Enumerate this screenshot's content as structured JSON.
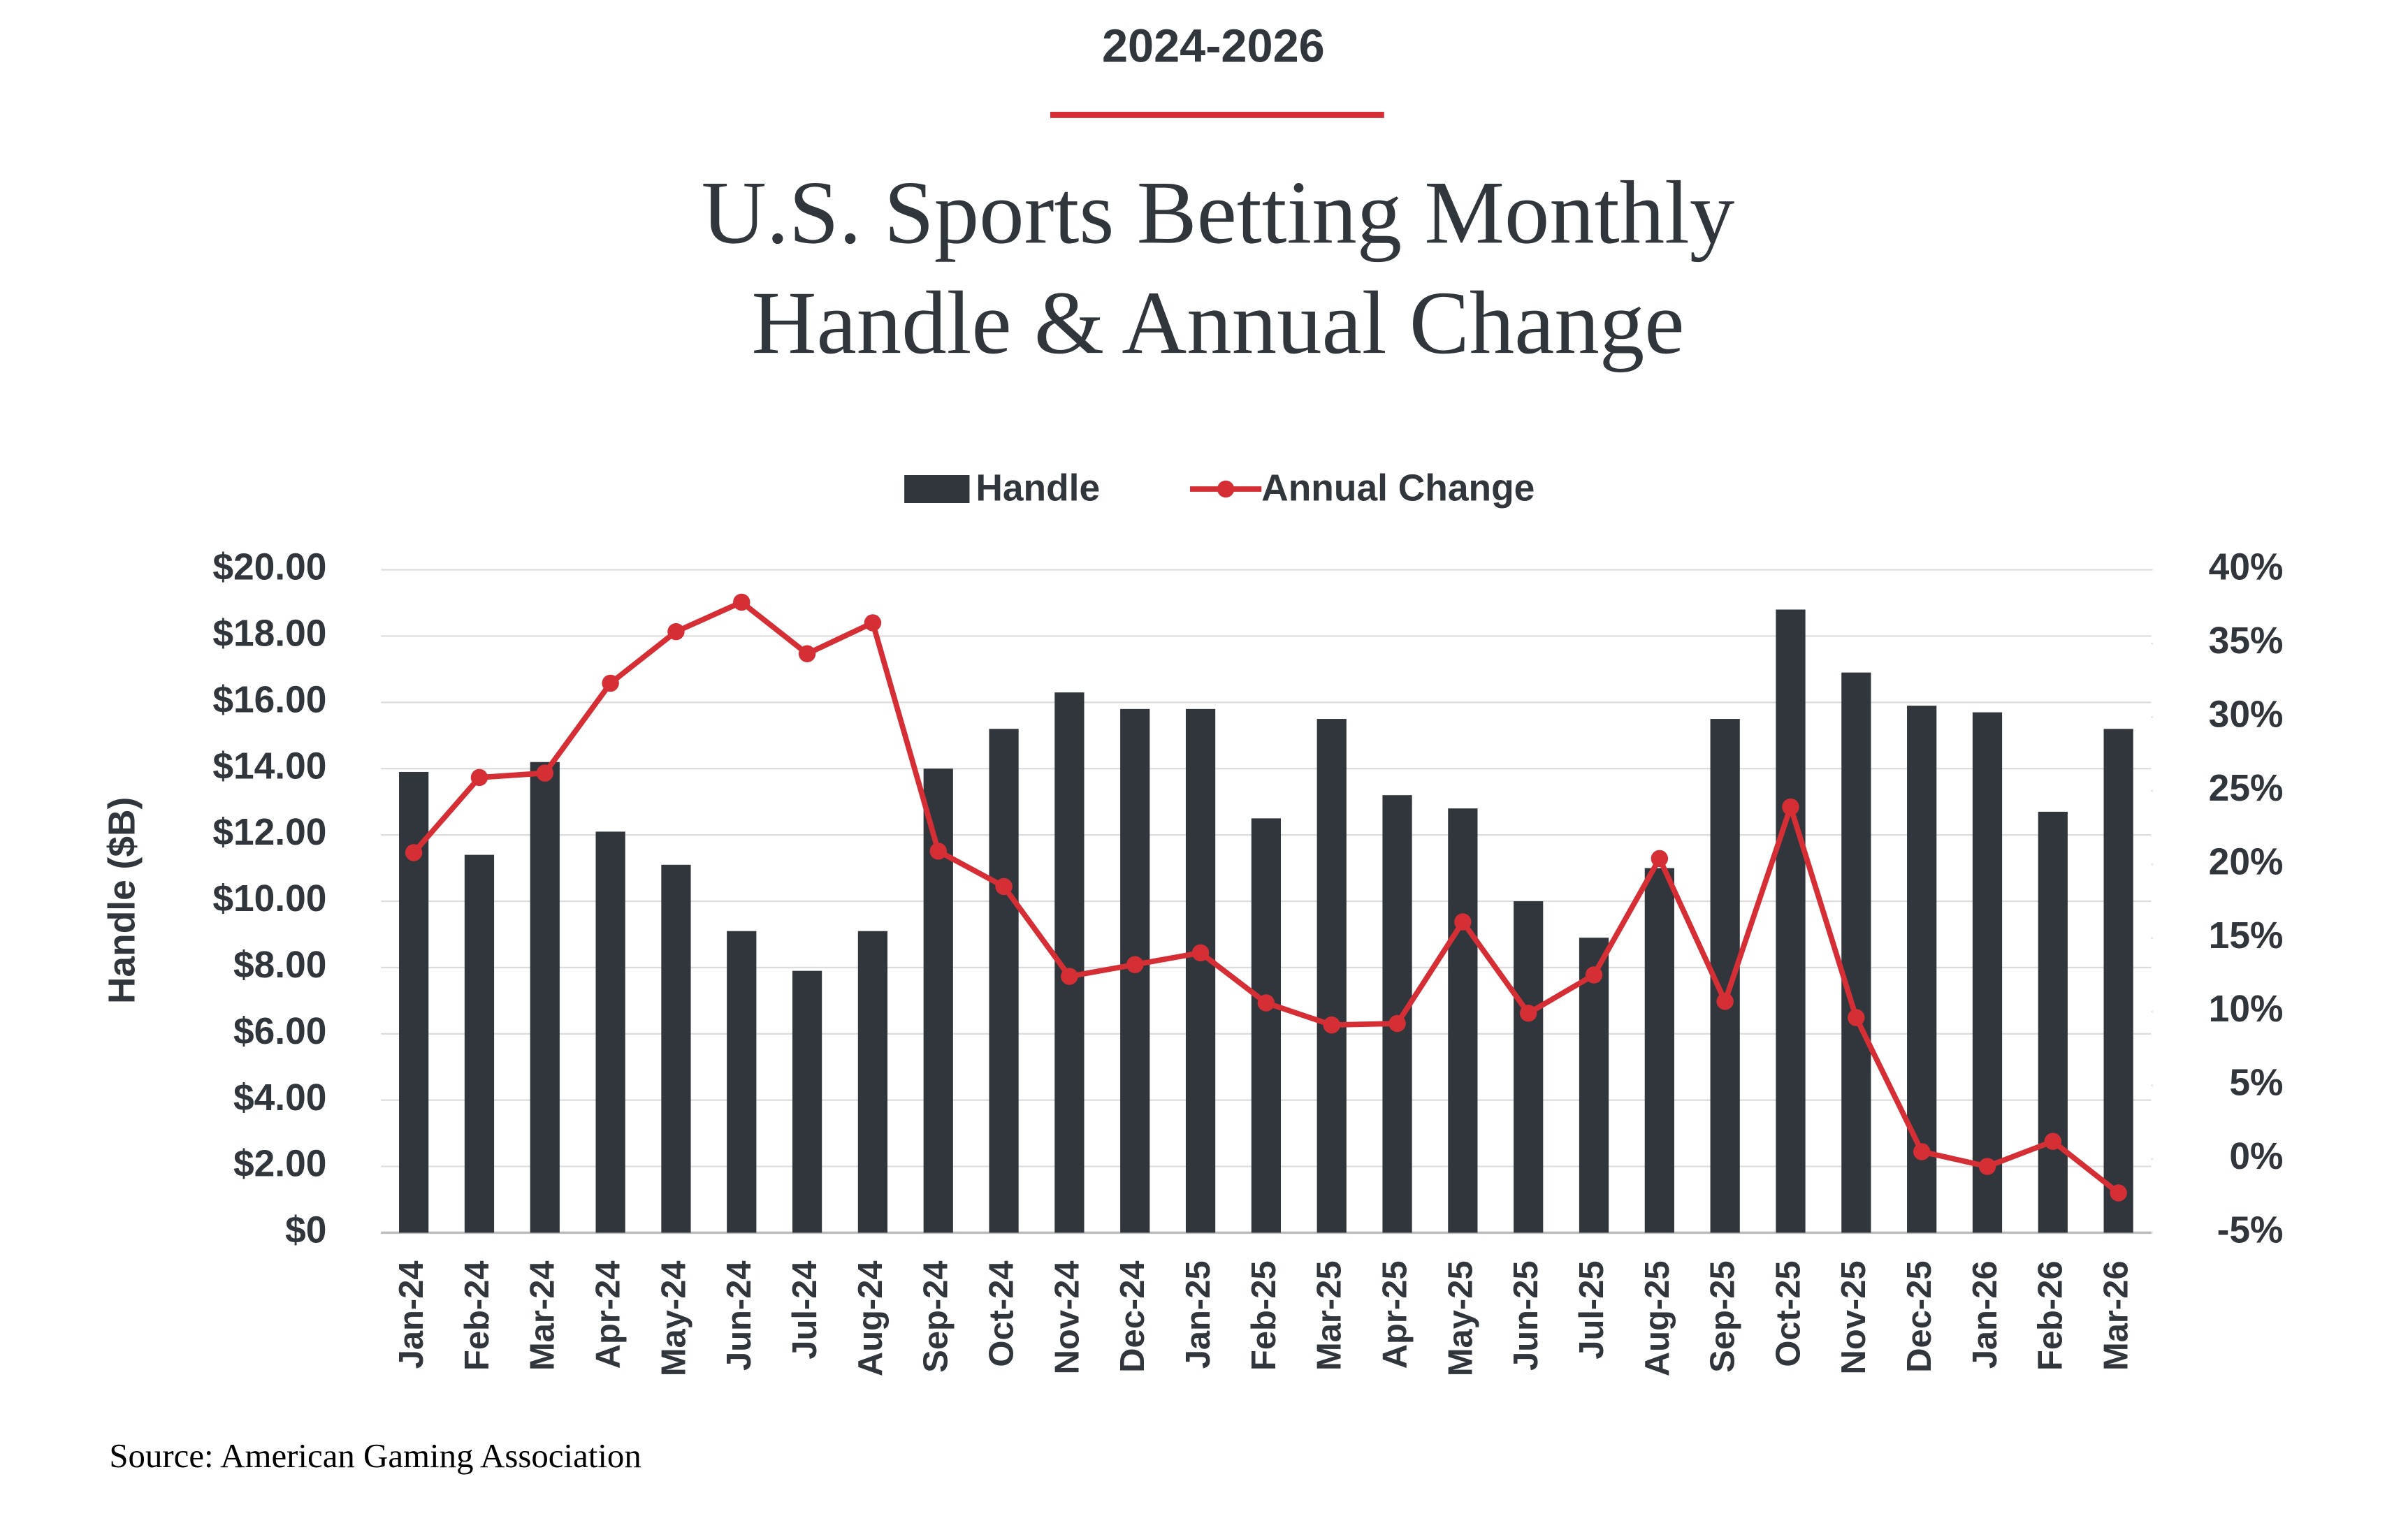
{
  "chart_data": {
    "type": "bar-line",
    "subtitle": "2024-2026",
    "title": [
      "U.S. Sports Betting Monthly",
      "Handle & Annual Change"
    ],
    "source": "Source: American Gaming Association",
    "y_label": "Handle ($B)",
    "categories": [
      "Jan-24",
      "Feb-24",
      "Mar-24",
      "Apr-24",
      "May-24",
      "Jun-24",
      "Jul-24",
      "Aug-24",
      "Sep-24",
      "Oct-24",
      "Nov-24",
      "Dec-24",
      "Jan-25",
      "Feb-25",
      "Mar-25",
      "Apr-25",
      "May-25",
      "Jun-25",
      "Jul-25",
      "Aug-25",
      "Sep-25",
      "Oct-25",
      "Nov-25",
      "Dec-25",
      "Jan-26",
      "Feb-26",
      "Mar-26"
    ],
    "series": [
      {
        "name": "Handle",
        "type": "bar",
        "color": "#30363c",
        "values": [
          13.9,
          11.4,
          14.2,
          12.1,
          11.1,
          9.1,
          7.9,
          9.1,
          14.0,
          15.2,
          16.3,
          15.8,
          15.8,
          12.5,
          15.5,
          13.2,
          12.8,
          10.0,
          8.9,
          11.0,
          15.5,
          18.8,
          16.9,
          15.9,
          15.7,
          12.7,
          15.2
        ]
      },
      {
        "name": "Annual Change",
        "type": "line",
        "axis": "y2",
        "color": "#d62e35",
        "values": [
          20.8,
          25.9,
          26.2,
          32.3,
          35.8,
          37.8,
          34.3,
          36.4,
          20.9,
          18.5,
          12.4,
          13.2,
          14.0,
          10.6,
          9.1,
          9.2,
          16.1,
          9.9,
          12.5,
          20.4,
          10.7,
          23.9,
          9.6,
          0.5,
          -0.5,
          1.2,
          -2.3
        ]
      }
    ],
    "ylim": [
      0,
      20
    ],
    "yticks": [
      {
        "value": 0,
        "label": "$0"
      },
      {
        "value": 2,
        "label": "$2.00"
      },
      {
        "value": 4,
        "label": "$4.00"
      },
      {
        "value": 6,
        "label": "$6.00"
      },
      {
        "value": 8,
        "label": "$8.00"
      },
      {
        "value": 10,
        "label": "$10.00"
      },
      {
        "value": 12,
        "label": "$12.00"
      },
      {
        "value": 14,
        "label": "$14.00"
      },
      {
        "value": 16,
        "label": "$16.00"
      },
      {
        "value": 18,
        "label": "$18.00"
      },
      {
        "value": 20,
        "label": "$20.00"
      }
    ],
    "y2lim": [
      -5,
      40
    ],
    "y2ticks": [
      {
        "value": -5,
        "label": "-5%"
      },
      {
        "value": 0,
        "label": "0%"
      },
      {
        "value": 5,
        "label": "5%"
      },
      {
        "value": 10,
        "label": "10%"
      },
      {
        "value": 15,
        "label": "15%"
      },
      {
        "value": 20,
        "label": "20%"
      },
      {
        "value": 25,
        "label": "25%"
      },
      {
        "value": 30,
        "label": "30%"
      },
      {
        "value": 35,
        "label": "35%"
      },
      {
        "value": 40,
        "label": "40%"
      }
    ],
    "grid": true,
    "legend": "top"
  }
}
